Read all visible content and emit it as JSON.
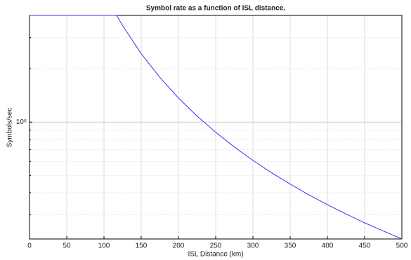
{
  "chart_data": {
    "type": "line",
    "title": "Symbol rate as a function of ISL distance.",
    "xlabel": "ISL Distance (km)",
    "ylabel": "Symbols/sec",
    "x": [
      0,
      25,
      50,
      75,
      100,
      117,
      125,
      150,
      175,
      200,
      225,
      250,
      275,
      300,
      325,
      350,
      375,
      400,
      425,
      450,
      475,
      500
    ],
    "values": [
      4000000,
      4000000,
      4000000,
      4000000,
      4000000,
      4000000,
      3504000,
      2434000,
      1788000,
      1369000,
      1082000,
      876000,
      724000,
      608000,
      518000,
      447000,
      389000,
      342000,
      303000,
      270000,
      243000,
      219000
    ],
    "color": "#3333ff",
    "xlim": [
      0,
      500
    ],
    "xticks": [
      0,
      50,
      100,
      150,
      200,
      250,
      300,
      350,
      400,
      450,
      500
    ],
    "ylim": [
      219000,
      4000000
    ],
    "yscale": "log",
    "yticks": [
      {
        "value": 1000000,
        "label": "10⁶"
      }
    ],
    "yminorticks": [
      300000,
      400000,
      500000,
      600000,
      700000,
      800000,
      900000,
      2000000,
      3000000
    ],
    "grid": true
  }
}
